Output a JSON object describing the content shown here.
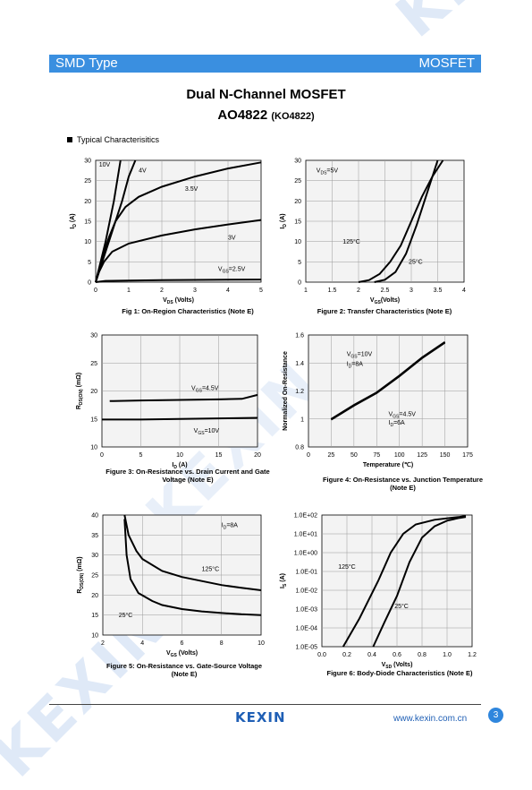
{
  "header": {
    "left": "SMD Type",
    "right": "MOSFET"
  },
  "title": "Dual N-Channel MOSFET",
  "part": "AO4822",
  "part_alt": "(KO4822)",
  "section": "Typical  Characterisitics",
  "watermark": "KEXIN",
  "footer": {
    "logo": "KEXIN",
    "url": "www.kexin.com.cn",
    "page": "3"
  },
  "colors": {
    "banner": "#3a8fe0",
    "grid": "#9a9a9a",
    "plot_bg": "#f3f3f3",
    "accent": "#1f5fb5"
  },
  "chart_data": [
    {
      "id": "fig1",
      "type": "line",
      "caption": "Fig 1: On-Region Characteristics (Note E)",
      "xlabel": [
        "V",
        "DS",
        " (Volts)"
      ],
      "ylabel": [
        "I",
        "D",
        " (A)"
      ],
      "xlim": [
        0,
        5
      ],
      "ylim": [
        0,
        30
      ],
      "xticks": [
        "0",
        "1",
        "2",
        "3",
        "4",
        "5"
      ],
      "yticks": [
        "0",
        "5",
        "10",
        "15",
        "20",
        "25",
        "30"
      ],
      "series": [
        {
          "name": "10V",
          "points": [
            [
              0,
              0
            ],
            [
              0.3,
              10
            ],
            [
              0.55,
              20
            ],
            [
              0.75,
              30
            ]
          ]
        },
        {
          "name": "4V",
          "points": [
            [
              0,
              0
            ],
            [
              0.4,
              10
            ],
            [
              0.8,
              20
            ],
            [
              1.0,
              26
            ],
            [
              1.2,
              30
            ]
          ]
        },
        {
          "name": "3.5V",
          "points": [
            [
              0,
              0
            ],
            [
              0.2,
              6
            ],
            [
              0.4,
              11
            ],
            [
              0.6,
              15
            ],
            [
              0.9,
              18.5
            ],
            [
              1.3,
              21
            ],
            [
              2,
              23.5
            ],
            [
              3,
              26
            ],
            [
              4,
              28
            ],
            [
              5,
              29.5
            ]
          ]
        },
        {
          "name": "3V",
          "points": [
            [
              0,
              0
            ],
            [
              0.1,
              2.5
            ],
            [
              0.25,
              5
            ],
            [
              0.5,
              7.5
            ],
            [
              1,
              9.5
            ],
            [
              2,
              11.5
            ],
            [
              3,
              13
            ],
            [
              4,
              14.2
            ],
            [
              5,
              15.3
            ]
          ]
        },
        {
          "name": "2.5V",
          "points": [
            [
              0,
              0
            ],
            [
              0.3,
              0.3
            ],
            [
              1,
              0.4
            ],
            [
              2,
              0.5
            ],
            [
              3,
              0.55
            ],
            [
              4,
              0.6
            ],
            [
              5,
              0.65
            ]
          ]
        }
      ],
      "annotations": [
        {
          "text": "10V",
          "x": 0.1,
          "y": 28.5
        },
        {
          "text": "4V",
          "x": 1.3,
          "y": 27
        },
        {
          "text": "3.5V",
          "x": 2.7,
          "y": 22.5
        },
        {
          "text": "3V",
          "x": 4.0,
          "y": 10.5
        },
        {
          "text": "V_GS=2.5V",
          "x": 3.7,
          "y": 2.8
        }
      ]
    },
    {
      "id": "fig2",
      "type": "line",
      "caption": "Figure 2: Transfer Characteristics (Note E)",
      "xlabel": [
        "V",
        "GS",
        "(Volts)"
      ],
      "ylabel": [
        "I",
        "D",
        " (A)"
      ],
      "xlim": [
        1,
        4
      ],
      "ylim": [
        0,
        30
      ],
      "xticks": [
        "1",
        "1.5",
        "2",
        "2.5",
        "3",
        "3.5",
        "4"
      ],
      "yticks": [
        "0",
        "5",
        "10",
        "15",
        "20",
        "25",
        "30"
      ],
      "series": [
        {
          "name": "125°C",
          "points": [
            [
              2.0,
              0
            ],
            [
              2.2,
              0.5
            ],
            [
              2.4,
              2
            ],
            [
              2.6,
              5
            ],
            [
              2.8,
              9
            ],
            [
              3.0,
              15
            ],
            [
              3.2,
              21
            ],
            [
              3.4,
              26
            ],
            [
              3.6,
              30
            ]
          ]
        },
        {
          "name": "25°C",
          "points": [
            [
              2.3,
              0
            ],
            [
              2.5,
              0.6
            ],
            [
              2.7,
              2.5
            ],
            [
              2.9,
              7
            ],
            [
              3.1,
              14
            ],
            [
              3.3,
              22
            ],
            [
              3.5,
              30
            ]
          ]
        }
      ],
      "annotations": [
        {
          "text": "V_DS=5V",
          "x": 1.2,
          "y": 27
        },
        {
          "text": "125°C",
          "x": 1.7,
          "y": 9.5
        },
        {
          "text": "25°C",
          "x": 2.95,
          "y": 4.5
        }
      ]
    },
    {
      "id": "fig3",
      "type": "line",
      "caption": "Figure 3: On-Resistance vs. Drain Current and Gate Voltage (Note E)",
      "xlabel": [
        "I",
        "D",
        " (A)"
      ],
      "ylabel": [
        "R",
        "DS(ON)",
        " (mΩ)"
      ],
      "xlim": [
        0,
        20
      ],
      "ylim": [
        10,
        30
      ],
      "xticks": [
        "0",
        "5",
        "10",
        "15",
        "20"
      ],
      "yticks": [
        "10",
        "15",
        "20",
        "25",
        "30"
      ],
      "series": [
        {
          "name": "V_GS=4.5V",
          "points": [
            [
              1,
              18.2
            ],
            [
              5,
              18.3
            ],
            [
              10,
              18.4
            ],
            [
              15,
              18.5
            ],
            [
              18,
              18.6
            ],
            [
              20,
              19.3
            ]
          ]
        },
        {
          "name": "V_GS=10V",
          "points": [
            [
              0,
              14.9
            ],
            [
              5,
              14.9
            ],
            [
              10,
              15.0
            ],
            [
              15,
              15.1
            ],
            [
              20,
              15.2
            ]
          ]
        }
      ],
      "annotations": [
        {
          "text": "V_GS=4.5V",
          "x": 11.5,
          "y": 20.2
        },
        {
          "text": "V_GS=10V",
          "x": 11.8,
          "y": 12.6
        }
      ]
    },
    {
      "id": "fig4",
      "type": "line",
      "caption": "Figure 4: On-Resistance vs. Junction Temperature (Note E)",
      "xlabel": [
        "Temperature (℃)"
      ],
      "ylabel": [
        "Normalized On-Resistance"
      ],
      "xlim": [
        0,
        175
      ],
      "ylim": [
        0.8,
        1.6
      ],
      "xticks": [
        "0",
        "25",
        "50",
        "75",
        "100",
        "125",
        "150",
        "175"
      ],
      "yticks": [
        "0.8",
        "1",
        "1.2",
        "1.4",
        "1.6"
      ],
      "series": [
        {
          "name": "V_GS=10V",
          "points": [
            [
              25,
              1.0
            ],
            [
              50,
              1.1
            ],
            [
              75,
              1.19
            ],
            [
              100,
              1.31
            ],
            [
              125,
              1.44
            ],
            [
              150,
              1.55
            ]
          ]
        },
        {
          "name": "V_GS=4.5V",
          "points": [
            [
              25,
              0.995
            ],
            [
              50,
              1.095
            ],
            [
              75,
              1.185
            ],
            [
              100,
              1.305
            ],
            [
              125,
              1.435
            ],
            [
              150,
              1.545
            ]
          ]
        }
      ],
      "annotations": [
        {
          "text": "V_GS=10V",
          "x": 42,
          "y": 1.45
        },
        {
          "text": "I_D=8A",
          "x": 42,
          "y": 1.38
        },
        {
          "text": "V_GS=4.5V",
          "x": 88,
          "y": 1.02
        },
        {
          "text": "I_D=6A",
          "x": 88,
          "y": 0.96
        }
      ]
    },
    {
      "id": "fig5",
      "type": "line",
      "caption": "Figure 5: On-Resistance vs. Gate-Source Voltage (Note E)",
      "xlabel": [
        "V",
        "GS",
        " (Volts)"
      ],
      "ylabel": [
        "R",
        "DS(ON)",
        " (mΩ)"
      ],
      "xlim": [
        2,
        10
      ],
      "ylim": [
        10,
        40
      ],
      "xticks": [
        "2",
        "4",
        "6",
        "8",
        "10"
      ],
      "yticks": [
        "10",
        "15",
        "20",
        "25",
        "30",
        "35",
        "40"
      ],
      "series": [
        {
          "name": "125°C",
          "points": [
            [
              3.1,
              40
            ],
            [
              3.3,
              35
            ],
            [
              3.7,
              31
            ],
            [
              4,
              29
            ],
            [
              5,
              26
            ],
            [
              6,
              24.5
            ],
            [
              7,
              23.5
            ],
            [
              8,
              22.5
            ],
            [
              9,
              21.8
            ],
            [
              10,
              21.2
            ]
          ]
        },
        {
          "name": "25°C",
          "points": [
            [
              3.1,
              39
            ],
            [
              3.2,
              30
            ],
            [
              3.4,
              24
            ],
            [
              3.8,
              20.5
            ],
            [
              4.5,
              18.5
            ],
            [
              5,
              17.5
            ],
            [
              6,
              16.5
            ],
            [
              7,
              15.9
            ],
            [
              8,
              15.5
            ],
            [
              9,
              15.2
            ],
            [
              10,
              15.0
            ]
          ]
        }
      ],
      "annotations": [
        {
          "text": "I_D=8A",
          "x": 8.0,
          "y": 37
        },
        {
          "text": "125°C",
          "x": 7.0,
          "y": 26
        },
        {
          "text": "25°C",
          "x": 2.8,
          "y": 14.5
        }
      ]
    },
    {
      "id": "fig6",
      "type": "line",
      "log_y": true,
      "caption": "Figure 6: Body-Diode Characteristics (Note E)",
      "xlabel": [
        "V",
        "SD",
        " (Volts)"
      ],
      "ylabel": [
        "I",
        "S",
        " (A)"
      ],
      "xlim": [
        0,
        1.2
      ],
      "ylim": [
        -5,
        2
      ],
      "xticks": [
        "0.0",
        "0.2",
        "0.4",
        "0.6",
        "0.8",
        "1.0",
        "1.2"
      ],
      "yticks": [
        "1.0E-05",
        "1.0E-04",
        "1.0E-03",
        "1.0E-02",
        "1.0E-01",
        "1.0E+00",
        "1.0E+01",
        "1.0E+02"
      ],
      "series": [
        {
          "name": "125°C",
          "points": [
            [
              0.17,
              -5
            ],
            [
              0.3,
              -3.5
            ],
            [
              0.45,
              -1.5
            ],
            [
              0.55,
              0
            ],
            [
              0.65,
              1
            ],
            [
              0.75,
              1.5
            ],
            [
              0.9,
              1.75
            ],
            [
              1.1,
              1.9
            ],
            [
              1.15,
              1.95
            ]
          ]
        },
        {
          "name": "25°C",
          "points": [
            [
              0.41,
              -5
            ],
            [
              0.5,
              -3.7
            ],
            [
              0.6,
              -2.3
            ],
            [
              0.7,
              -0.5
            ],
            [
              0.8,
              0.8
            ],
            [
              0.9,
              1.4
            ],
            [
              1.0,
              1.7
            ],
            [
              1.1,
              1.85
            ],
            [
              1.15,
              1.9
            ]
          ]
        }
      ],
      "annotations": [
        {
          "text": "125°C",
          "x": 0.13,
          "y": -0.85
        },
        {
          "text": "25°C",
          "x": 0.58,
          "y": -2.95
        }
      ]
    }
  ]
}
